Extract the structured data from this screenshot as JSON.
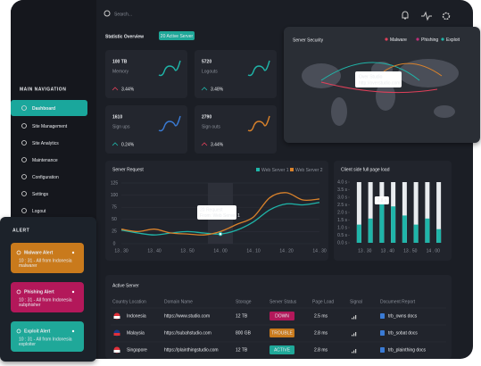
{
  "search": "Search...",
  "overview": {
    "title": "Statistic Overview",
    "badge": "20 Active Server",
    "cards": [
      {
        "value": "100 TB",
        "label": "Memory",
        "change": "3.44%",
        "trend": "down"
      },
      {
        "value": "5720",
        "label": "Logouts",
        "change": "3.48%",
        "trend": "up"
      },
      {
        "value": "1610",
        "label": "Sign ups",
        "change": "0.24%",
        "trend": "up"
      },
      {
        "value": "2790",
        "label": "Sign outs",
        "change": "3.44%",
        "trend": "down"
      }
    ]
  },
  "security": {
    "title": "Server Security",
    "legend": [
      {
        "name": "Malware",
        "color": "#e0405a"
      },
      {
        "name": "Phishing",
        "color": "#c0307a"
      },
      {
        "name": "Exploit",
        "color": "#1fb5a9"
      }
    ],
    "tooltip": {
      "title": "Over Studio",
      "url": "http://overstudio.com"
    }
  },
  "navigation": {
    "title": "MAIN NAVIGATION",
    "items": [
      "Dashboard",
      "Site Management",
      "Site Analytics",
      "Maintenance",
      "Configuration",
      "Settings",
      "Logout"
    ]
  },
  "alerts": {
    "title": "ALERT",
    "items": [
      {
        "title": "Malware Alert",
        "text": [
          "10 : 31 - All from Indonesia",
          "malwarer"
        ],
        "color": "#c97a1c"
      },
      {
        "title": "Phishing Alert",
        "text": [
          "10 : 31 - All from Indonesia",
          "subphisher"
        ],
        "color": "#b3185a"
      },
      {
        "title": "Exploit Alert",
        "text": [
          "10 : 31 - All from Indonesia",
          "exploiter"
        ],
        "color": "#1fa899"
      }
    ]
  },
  "server_request": {
    "type": "line",
    "title": "Server Request",
    "categories": [
      "13 . 30",
      null,
      "13 . 40",
      null,
      "13 . 50",
      null,
      "14 . 00",
      null,
      "14 . 10",
      null,
      "14 . 20",
      null,
      "14 . 30"
    ],
    "series": [
      {
        "name": "Web Server 1",
        "color": "#1fb5a9",
        "values": [
          28,
          22,
          18,
          22,
          25,
          22,
          20,
          28,
          45,
          70,
          82,
          80,
          85
        ]
      },
      {
        "name": "Web Server 2",
        "color": "#d9822b",
        "values": [
          30,
          25,
          30,
          22,
          20,
          18,
          25,
          40,
          55,
          95,
          105,
          90,
          92
        ]
      }
    ],
    "ylim": [
      0,
      125
    ],
    "yticks": [
      0,
      25,
      50,
      75,
      100,
      125
    ],
    "tooltip": {
      "title": "20 Request",
      "subtitle": "From: Web Server 1"
    }
  },
  "page_load": {
    "type": "bar",
    "title": "Client side full page load",
    "categories": [
      "13 . 30",
      null,
      "13 . 40",
      null,
      "13 . 50",
      null,
      "14 . 00",
      null
    ],
    "values": [
      1.2,
      1.6,
      2.8,
      2.4,
      1.8,
      1.2,
      1.6,
      0.9
    ],
    "color": "#1fb5a9",
    "ylim": [
      0,
      4
    ],
    "yticks": [
      {
        "value": 0,
        "label": "0.0 s"
      },
      {
        "value": 0.5,
        "label": "0.5 s"
      },
      {
        "value": 1,
        "label": "1.0 s"
      },
      {
        "value": 1.5,
        "label": "1.5 s"
      },
      {
        "value": 2,
        "label": "2.0 s"
      },
      {
        "value": 2.5,
        "label": "2.5 s"
      },
      {
        "value": 3,
        "label": "3.0 s"
      },
      {
        "value": 3.5,
        "label": "3.5 s"
      },
      {
        "value": 4,
        "label": "4.0 s"
      }
    ],
    "tooltip": "2.8 s"
  },
  "table": {
    "title": "Active Server",
    "columns": [
      "Country Location",
      "Domain Name",
      "Storage",
      "Server Status",
      "Page Load",
      "Signal",
      "Document Report"
    ],
    "rows": [
      {
        "country": "Indonesia",
        "domain": "https://www.studio.com",
        "storage": "12 TB",
        "status": "DOWN",
        "status_color": "#b3185a",
        "load": "2.5 ms",
        "report": "trb_owns docs"
      },
      {
        "country": "Malaysia",
        "domain": "https://subahstudio.com",
        "storage": "800 GB",
        "status": "TROUBLE",
        "status_color": "#c97a1c",
        "load": "2.8 ms",
        "report": "trb_sobat docs"
      },
      {
        "country": "Singapore",
        "domain": "https://plainthingstudio.com",
        "storage": "12 TB",
        "status": "ACTIVE",
        "status_color": "#1fa899",
        "load": "2.8 ms",
        "report": "trb_plainthing docs"
      }
    ]
  }
}
